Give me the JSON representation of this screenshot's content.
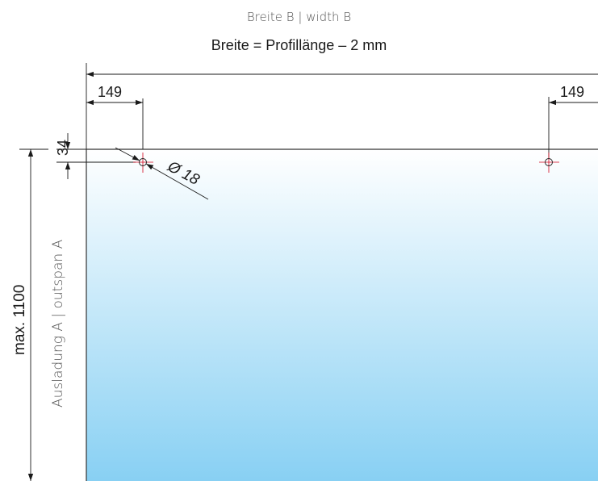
{
  "title": "Breite B | width B",
  "formula": "Breite = Profillänge – 2 mm",
  "dims": {
    "offset_left": "149",
    "offset_right": "149",
    "hole_depth": "34",
    "hole_diameter": "Ø 18",
    "max_outspan": "max. 1100"
  },
  "side_label": "Ausladung A | outspan A",
  "colors": {
    "gradient_top": "#ffffff",
    "gradient_bottom": "#88d0f3",
    "line": "#1a1a1a",
    "hole": "#d0021b"
  }
}
